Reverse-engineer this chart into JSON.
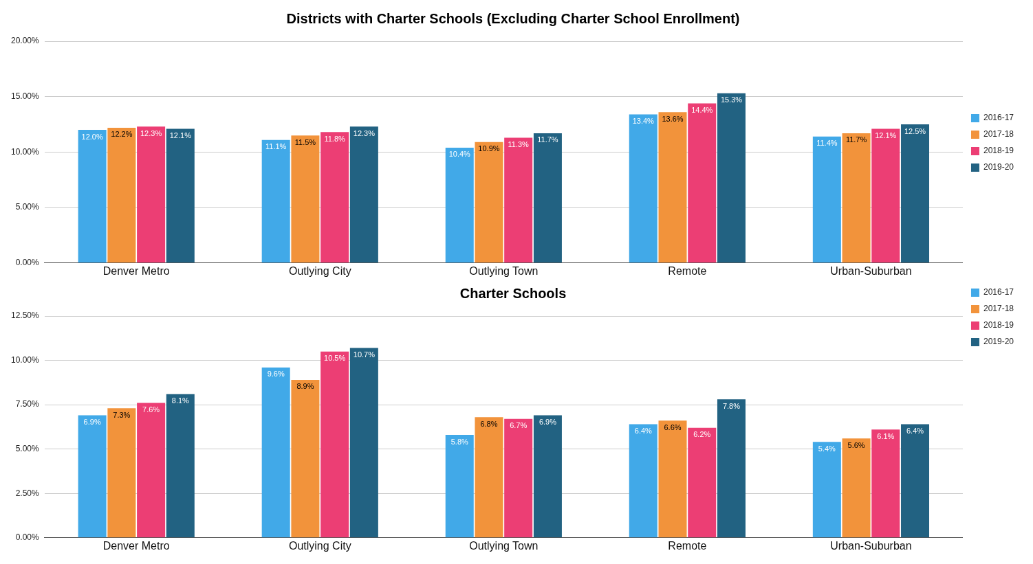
{
  "chart_data": [
    {
      "type": "bar",
      "title": "Districts with Charter Schools (Excluding Charter School Enrollment)",
      "categories": [
        "Denver Metro",
        "Outlying City",
        "Outlying Town",
        "Remote",
        "Urban-Suburban"
      ],
      "series": [
        {
          "name": "2016-17",
          "color": "#41a9e8",
          "values": [
            12.0,
            11.1,
            10.4,
            13.4,
            11.4
          ],
          "value_labels": [
            "12.0%",
            "11.1%",
            "10.4%",
            "13.4%",
            "11.4%"
          ]
        },
        {
          "name": "2017-18",
          "color": "#f2933b",
          "values": [
            12.2,
            11.5,
            10.9,
            13.6,
            11.7
          ],
          "value_labels": [
            "12.2%",
            "11.5%",
            "10.9%",
            "13.6%",
            "11.7%"
          ]
        },
        {
          "name": "2018-19",
          "color": "#ec3e74",
          "values": [
            12.3,
            11.8,
            11.3,
            14.4,
            12.1
          ],
          "value_labels": [
            "12.3%",
            "11.8%",
            "11.3%",
            "14.4%",
            "12.1%"
          ]
        },
        {
          "name": "2019-20",
          "color": "#226282",
          "values": [
            12.1,
            12.3,
            11.7,
            15.3,
            12.5
          ],
          "value_labels": [
            "12.1%",
            "12.3%",
            "11.7%",
            "15.3%",
            "12.5%"
          ]
        }
      ],
      "ylim": [
        0,
        20
      ],
      "yticks": [
        {
          "value": 0,
          "label": "0.00%"
        },
        {
          "value": 5,
          "label": "5.00%"
        },
        {
          "value": 10,
          "label": "10.00%"
        },
        {
          "value": 15,
          "label": "15.00%"
        },
        {
          "value": 20,
          "label": "20.00%"
        }
      ],
      "grid": "y",
      "legend": "right"
    },
    {
      "type": "bar",
      "title": "Charter Schools",
      "categories": [
        "Denver Metro",
        "Outlying City",
        "Outlying Town",
        "Remote",
        "Urban-Suburban"
      ],
      "series": [
        {
          "name": "2016-17",
          "color": "#41a9e8",
          "values": [
            6.9,
            9.6,
            5.8,
            6.4,
            5.4
          ],
          "value_labels": [
            "6.9%",
            "9.6%",
            "5.8%",
            "6.4%",
            "5.4%"
          ]
        },
        {
          "name": "2017-18",
          "color": "#f2933b",
          "values": [
            7.3,
            8.9,
            6.8,
            6.6,
            5.6
          ],
          "value_labels": [
            "7.3%",
            "8.9%",
            "6.8%",
            "6.6%",
            "5.6%"
          ]
        },
        {
          "name": "2018-19",
          "color": "#ec3e74",
          "values": [
            7.6,
            10.5,
            6.7,
            6.2,
            6.1
          ],
          "value_labels": [
            "7.6%",
            "10.5%",
            "6.7%",
            "6.2%",
            "6.1%"
          ]
        },
        {
          "name": "2019-20",
          "color": "#226282",
          "values": [
            8.1,
            10.7,
            6.9,
            7.8,
            6.4
          ],
          "value_labels": [
            "8.1%",
            "10.7%",
            "6.9%",
            "7.8%",
            "6.4%"
          ]
        }
      ],
      "ylim": [
        0,
        12.5
      ],
      "yticks": [
        {
          "value": 0,
          "label": "0.00%"
        },
        {
          "value": 2.5,
          "label": "2.50%"
        },
        {
          "value": 5,
          "label": "5.00%"
        },
        {
          "value": 7.5,
          "label": "7.50%"
        },
        {
          "value": 10,
          "label": "10.00%"
        },
        {
          "value": 12.5,
          "label": "12.50%"
        }
      ],
      "grid": "y",
      "legend": "top right"
    }
  ]
}
